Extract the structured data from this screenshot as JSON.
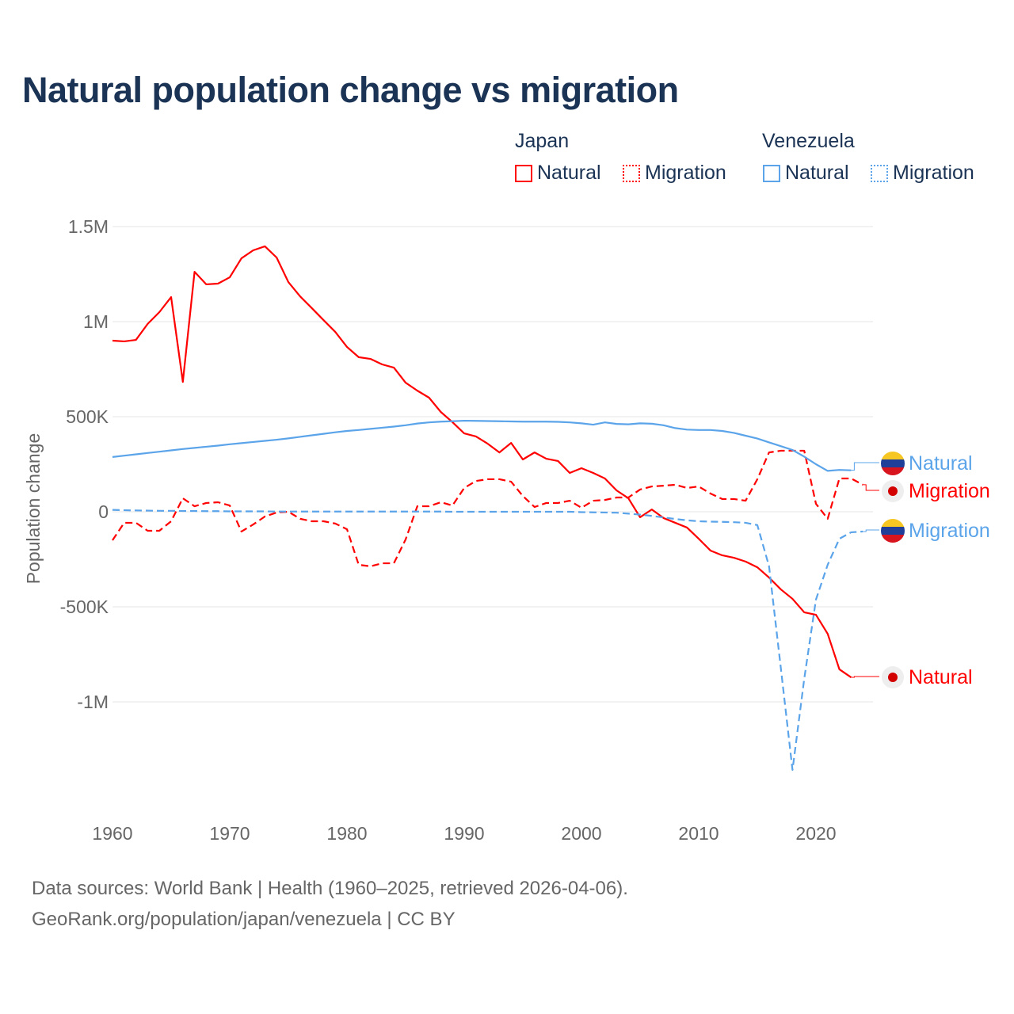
{
  "title": "Natural population change vs migration",
  "legend": {
    "groups": [
      {
        "label": "Japan",
        "items": [
          "Natural",
          "Migration"
        ]
      },
      {
        "label": "Venezuela",
        "items": [
          "Natural",
          "Migration"
        ]
      }
    ]
  },
  "colors": {
    "japan": "#ff0000",
    "venezuela": "#5ba4ea",
    "title": "#1b3354"
  },
  "footer": {
    "line1": "Data sources: World Bank | Health (1960–2025, retrieved 2026-04-06).",
    "line2": "GeoRank.org/population/japan/venezuela | CC BY"
  },
  "end_labels": {
    "venezuela_natural": "Natural",
    "japan_migration": "Migration",
    "venezuela_migration": "Migration",
    "japan_natural": "Natural"
  },
  "chart_data": {
    "type": "line",
    "title": "Natural population change vs migration",
    "xlabel": "",
    "ylabel": "Population change",
    "xlim": [
      1960,
      2025
    ],
    "ylim": [
      -1500000,
      1500000
    ],
    "x_ticks": [
      "1960",
      "1970",
      "1980",
      "1990",
      "2000",
      "2010",
      "2020"
    ],
    "y_ticks": [
      {
        "value": 1500000,
        "label": "1.5M"
      },
      {
        "value": 1000000,
        "label": "1M"
      },
      {
        "value": 500000,
        "label": "500K"
      },
      {
        "value": 0,
        "label": "0"
      },
      {
        "value": -500000,
        "label": "-500K"
      },
      {
        "value": -1000000,
        "label": "-1M"
      }
    ],
    "grid": true,
    "legend_position": "top-right",
    "series": [
      {
        "name": "Japan Natural",
        "country": "Japan",
        "kind": "Natural",
        "color": "#ff0000",
        "dash": false,
        "start": 1960,
        "values_k": [
          900,
          896,
          904,
          988,
          1050,
          1129,
          683,
          1262,
          1196,
          1200,
          1233,
          1333,
          1375,
          1396,
          1337,
          1208,
          1133,
          1071,
          1008,
          946,
          867,
          813,
          804,
          775,
          758,
          679,
          637,
          600,
          525,
          471,
          412,
          396,
          358,
          312,
          362,
          275,
          312,
          279,
          267,
          204,
          229,
          204,
          175,
          112,
          71,
          -29,
          12,
          -33,
          -58,
          -83,
          -142,
          -204,
          -229,
          -242,
          -262,
          -292,
          -346,
          -408,
          -458,
          -529,
          -542,
          -642,
          -829,
          -871
        ]
      },
      {
        "name": "Japan Migration",
        "country": "Japan",
        "kind": "Migration",
        "color": "#ff0000",
        "dash": true,
        "start": 1960,
        "values_k": [
          -150,
          -58,
          -58,
          -100,
          -100,
          -50,
          71,
          29,
          46,
          50,
          33,
          -104,
          -67,
          -25,
          -4,
          0,
          -37,
          -50,
          -50,
          -62,
          -92,
          -279,
          -287,
          -271,
          -271,
          -146,
          29,
          29,
          50,
          33,
          125,
          162,
          171,
          171,
          158,
          83,
          25,
          46,
          46,
          58,
          21,
          58,
          62,
          75,
          75,
          117,
          133,
          137,
          142,
          125,
          133,
          96,
          67,
          67,
          58,
          171,
          312,
          321,
          321,
          321,
          42,
          -37,
          175,
          175,
          142
        ]
      },
      {
        "name": "Venezuela Natural",
        "country": "Venezuela",
        "kind": "Natural",
        "color": "#5ba4ea",
        "dash": false,
        "start": 1960,
        "values_k": [
          288,
          295,
          302,
          309,
          316,
          323,
          330,
          336,
          342,
          348,
          355,
          361,
          367,
          373,
          379,
          386,
          394,
          402,
          410,
          418,
          425,
          430,
          436,
          442,
          448,
          455,
          464,
          470,
          474,
          476,
          479,
          478,
          477,
          476,
          475,
          474,
          474,
          474,
          473,
          470,
          465,
          458,
          470,
          462,
          460,
          465,
          463,
          455,
          440,
          432,
          430,
          430,
          425,
          415,
          400,
          385,
          365,
          345,
          325,
          290,
          250,
          215,
          220,
          218
        ]
      },
      {
        "name": "Venezuela Migration",
        "country": "Venezuela",
        "kind": "Migration",
        "color": "#5ba4ea",
        "dash": true,
        "start": 1960,
        "values_k": [
          10,
          8,
          7,
          6,
          5,
          5,
          4,
          4,
          3,
          3,
          2,
          2,
          2,
          2,
          1,
          1,
          1,
          1,
          1,
          1,
          1,
          1,
          1,
          1,
          1,
          1,
          1,
          1,
          1,
          0,
          0,
          0,
          0,
          0,
          0,
          0,
          0,
          0,
          0,
          0,
          -2,
          -3,
          -4,
          -5,
          -10,
          -15,
          -22,
          -30,
          -38,
          -45,
          -50,
          -52,
          -53,
          -55,
          -58,
          -70,
          -287,
          -820,
          -1358,
          -879,
          -462,
          -279,
          -142,
          -108,
          -104
        ]
      }
    ]
  }
}
